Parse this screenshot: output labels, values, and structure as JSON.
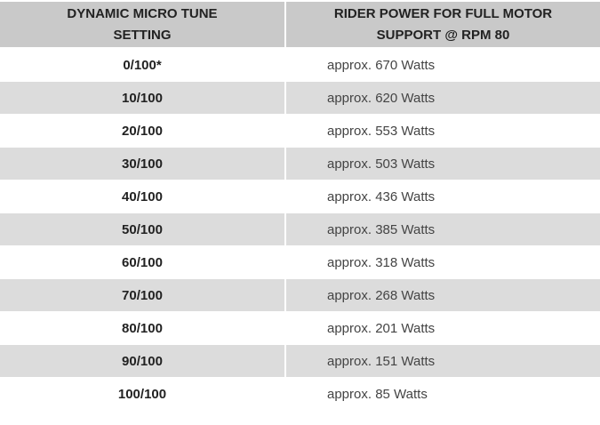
{
  "table": {
    "header": [
      [
        "DYNAMIC MICRO TUNE",
        "SETTING"
      ],
      [
        "RIDER POWER FOR FULL MOTOR",
        "SUPPORT @ RPM 80"
      ]
    ],
    "rows": [
      [
        "0/100*",
        "approx. 670 Watts"
      ],
      [
        "10/100",
        "approx. 620 Watts"
      ],
      [
        "20/100",
        "approx. 553 Watts"
      ],
      [
        "30/100",
        "approx. 503 Watts"
      ],
      [
        "40/100",
        "approx. 436 Watts"
      ],
      [
        "50/100",
        "approx. 385 Watts"
      ],
      [
        "60/100",
        "approx. 318 Watts"
      ],
      [
        "70/100",
        "approx. 268 Watts"
      ],
      [
        "80/100",
        "approx. 201 Watts"
      ],
      [
        "90/100",
        "approx. 151 Watts"
      ],
      [
        "100/100",
        "approx. 85 Watts"
      ]
    ]
  }
}
